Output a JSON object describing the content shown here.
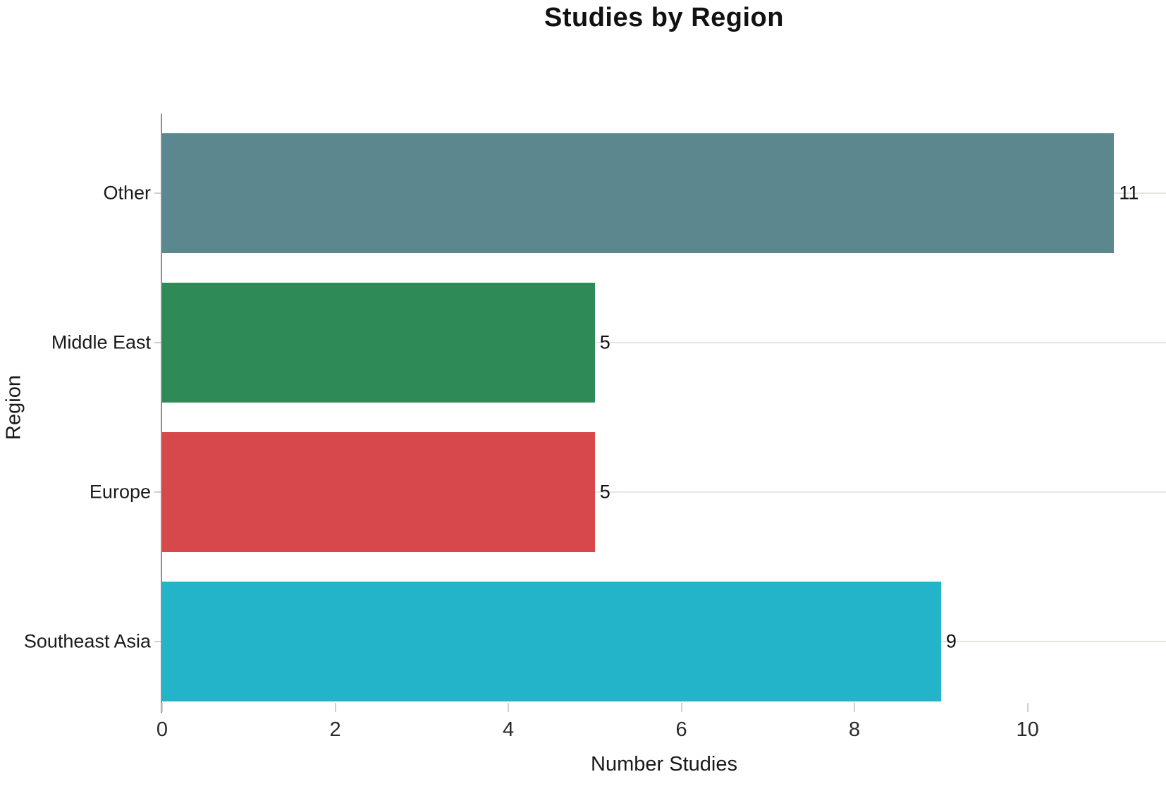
{
  "chart_data": {
    "type": "bar",
    "orientation": "horizontal",
    "title": "Studies by Region",
    "xlabel": "Number Studies",
    "ylabel": "Region",
    "categories": [
      "Other",
      "Middle East",
      "Europe",
      "Southeast Asia"
    ],
    "values": [
      11,
      5,
      5,
      9
    ],
    "value_labels": [
      "11",
      "5",
      "5",
      "9"
    ],
    "bar_colors": [
      "#5B888F",
      "#2E8B57",
      "#D64849",
      "#23B4C9"
    ],
    "x_ticks": [
      "0",
      "2",
      "4",
      "6",
      "8",
      "10"
    ],
    "x_tick_values": [
      0,
      2,
      4,
      6,
      8,
      10
    ],
    "xlim": [
      0,
      11.6
    ],
    "grid": "horizontal gridline at each category center",
    "legend_position": "none",
    "colors": {
      "background": "#ffffff",
      "gridline": "#e8e5e1",
      "axis_line": "#8f8f8f",
      "tick": "#cfcfcf",
      "text": "#1a1a1a"
    }
  }
}
